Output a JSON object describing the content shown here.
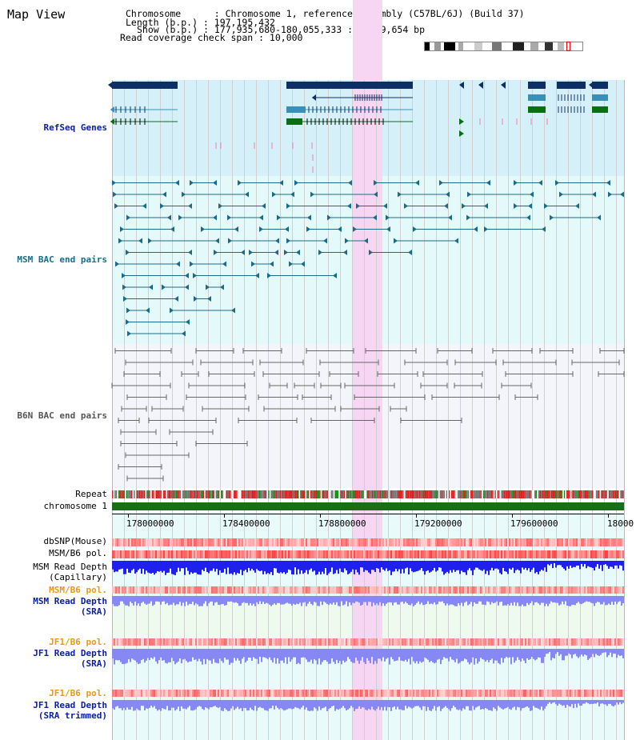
{
  "header": {
    "title": "Map View",
    "chromosome_line": "Chromosome      : Chromosome 1, reference assembly (C57BL/6J) (Build 37)",
    "length_line": "Length (b.p.) : 197,195,432",
    "show_line": "Show (b.p.) : 177,935,680-180,055,333 : 2,119,654 bp",
    "span_line": "Read coverage check span : 10,000"
  },
  "tracks": {
    "refseq": "RefSeq Genes",
    "msm_bac": "MSM BAC end pairs",
    "b6n_bac": "B6N BAC end pairs",
    "repeat": "Repeat",
    "chromosome": "chromosome 1",
    "dbsnp": "dbSNP(Mouse)",
    "msm_b6_pol": "MSM/B6 pol.",
    "msm_depth_cap_1": "MSM Read Depth",
    "msm_depth_cap_2": "(Capillary)",
    "msm_b6_pol2": "MSM/B6 pol.",
    "msm_depth_sra_1": "MSM Read Depth",
    "msm_depth_sra_2": "(SRA)",
    "jf1_pol": "JF1/B6 pol.",
    "jf1_depth_1": "JF1 Read Depth",
    "jf1_depth_2": "(SRA)",
    "jf1_pol2": "JF1/B6 pol.",
    "jf1_trim_1": "JF1 Read Depth",
    "jf1_trim_2": "(SRA trimmed)"
  },
  "axis": {
    "ticks": [
      "178000000",
      "178400000",
      "178800000",
      "179200000",
      "179600000",
      "18000"
    ]
  },
  "colors": {
    "refseq_bg": "#d6f0fa",
    "msm_bg": "#e4fafa",
    "b6n_bg": "#f4f4fb",
    "highlight": "#f7d6f4",
    "refseq_dark": "#0d2f66",
    "refseq_mid": "#3a8fb7",
    "refseq_green": "#0a6e14",
    "msm_line": "#1b6b88",
    "b6n_line": "#666666",
    "chrom_green": "#1a6e1a",
    "depth_blue": "#2020ee",
    "depth_light": "#8888f4",
    "pol_red": "#f04040",
    "label_blue": "#0a1ea0",
    "label_orange": "#e89a10",
    "label_teal": "#13708a"
  }
}
